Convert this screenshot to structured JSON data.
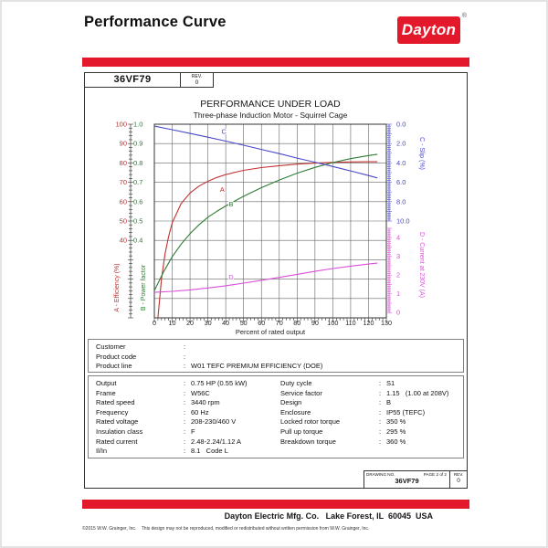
{
  "sep": ":",
  "colors": {
    "dayton_red": "#E3192B",
    "efficiency": "#C23030",
    "power_factor": "#2E7D33",
    "slip": "#4848C8",
    "current": "#D94FD9",
    "grid": "#666666",
    "plot_border": "#333333"
  },
  "header": {
    "title": "Performance Curve",
    "logo_text": "Dayton",
    "registered_mark": "®"
  },
  "part": {
    "number": "36VF79",
    "rev_label": "REV.",
    "rev_value": "0"
  },
  "chart_data": {
    "type": "line",
    "title": "PERFORMANCE UNDER LOAD",
    "subtitle": "Three-phase Induction Motor - Squirrel Cage",
    "xlabel": "Percent of rated output",
    "grid": true,
    "x_axis": {
      "min": 0,
      "max": 130,
      "ticks": [
        0,
        10,
        20,
        30,
        40,
        50,
        60,
        70,
        80,
        90,
        100,
        110,
        120,
        130
      ]
    },
    "y_axes": {
      "efficiency": {
        "title": "A - Efficiency (%)",
        "side": "left",
        "range": [
          0,
          100
        ],
        "ticks": [
          100,
          90,
          80,
          70,
          60,
          50,
          40
        ],
        "tick_labels": [
          "100",
          "90",
          "80",
          "70",
          "60",
          "50",
          "40"
        ]
      },
      "power_factor": {
        "title": "B - Power factor",
        "side": "left",
        "range": [
          0,
          1
        ],
        "ticks": [
          1.0,
          0.9,
          0.8,
          0.7,
          0.6,
          0.5,
          0.4
        ],
        "tick_labels": [
          "1.0",
          "0.9",
          "0.8",
          "0.7",
          "0.6",
          "0.5",
          "0.4"
        ]
      },
      "slip": {
        "title": "C - Slip (%)",
        "side": "right",
        "range": [
          0,
          10
        ],
        "ticks": [
          0,
          2,
          4,
          6,
          8,
          10
        ],
        "tick_labels": [
          "0.0",
          "2.0",
          "4.0",
          "6.0",
          "8.0",
          "10.0"
        ]
      },
      "current": {
        "title": "D - Current at 230V (A)",
        "side": "right",
        "range": [
          0,
          4
        ],
        "ticks": [
          4,
          3,
          2,
          1,
          0
        ],
        "tick_labels": [
          "4",
          "3",
          "2",
          "1",
          "0"
        ]
      }
    },
    "series": [
      {
        "name": "A",
        "axis": "efficiency",
        "points": [
          [
            2,
            0
          ],
          [
            4,
            20
          ],
          [
            6,
            33
          ],
          [
            8,
            42
          ],
          [
            10,
            49
          ],
          [
            15,
            59
          ],
          [
            20,
            64.5
          ],
          [
            25,
            68
          ],
          [
            30,
            70.5
          ],
          [
            35,
            72.5
          ],
          [
            40,
            74
          ],
          [
            50,
            76.2
          ],
          [
            60,
            77.6
          ],
          [
            70,
            78.6
          ],
          [
            80,
            79.4
          ],
          [
            90,
            79.9
          ],
          [
            100,
            80.3
          ],
          [
            110,
            80.5
          ],
          [
            120,
            80.6
          ],
          [
            125,
            80.6
          ]
        ]
      },
      {
        "name": "B",
        "axis": "power_factor",
        "points": [
          [
            0,
            0.14
          ],
          [
            5,
            0.235
          ],
          [
            10,
            0.315
          ],
          [
            15,
            0.38
          ],
          [
            20,
            0.435
          ],
          [
            25,
            0.48
          ],
          [
            30,
            0.52
          ],
          [
            35,
            0.55
          ],
          [
            40,
            0.578
          ],
          [
            50,
            0.628
          ],
          [
            60,
            0.672
          ],
          [
            70,
            0.712
          ],
          [
            80,
            0.747
          ],
          [
            90,
            0.777
          ],
          [
            100,
            0.802
          ],
          [
            110,
            0.822
          ],
          [
            120,
            0.838
          ],
          [
            125,
            0.845
          ]
        ]
      },
      {
        "name": "C",
        "axis": "slip",
        "points": [
          [
            0,
            0.2
          ],
          [
            10,
            0.57
          ],
          [
            20,
            0.95
          ],
          [
            30,
            1.34
          ],
          [
            40,
            1.75
          ],
          [
            50,
            2.17
          ],
          [
            60,
            2.6
          ],
          [
            70,
            3.04
          ],
          [
            80,
            3.5
          ],
          [
            90,
            3.92
          ],
          [
            100,
            4.37
          ],
          [
            110,
            4.82
          ],
          [
            120,
            5.3
          ],
          [
            125,
            5.55
          ]
        ]
      },
      {
        "name": "D",
        "axis": "current",
        "points": [
          [
            0,
            1.07
          ],
          [
            10,
            1.12
          ],
          [
            20,
            1.2
          ],
          [
            30,
            1.3
          ],
          [
            40,
            1.42
          ],
          [
            50,
            1.56
          ],
          [
            60,
            1.71
          ],
          [
            70,
            1.87
          ],
          [
            80,
            2.03
          ],
          [
            90,
            2.19
          ],
          [
            100,
            2.34
          ],
          [
            110,
            2.47
          ],
          [
            120,
            2.58
          ],
          [
            125,
            2.63
          ]
        ]
      }
    ],
    "curve_labels": [
      {
        "text": "C",
        "x": 39,
        "axis": "slip",
        "value": 1.0
      },
      {
        "text": "A",
        "x": 38,
        "axis": "efficiency",
        "value": 65
      },
      {
        "text": "B",
        "x": 43,
        "axis": "power_factor",
        "value": 0.575
      },
      {
        "text": "D",
        "x": 43,
        "axis": "current",
        "value": 1.75
      }
    ]
  },
  "customer_info": [
    {
      "label": "Customer",
      "value": ""
    },
    {
      "label": "Product code",
      "value": ""
    },
    {
      "label": "Product line",
      "value": "W01 TEFC PREMIUM EFFICIENCY (DOE)"
    }
  ],
  "specs": {
    "left": [
      {
        "label": "Output",
        "value": "0.75 HP (0.55 kW)"
      },
      {
        "label": "Frame",
        "value": "W56C"
      },
      {
        "label": "Rated speed",
        "value": "3440 rpm"
      },
      {
        "label": "Frequency",
        "value": "60 Hz"
      },
      {
        "label": "Rated voltage",
        "value": "208-230/460 V"
      },
      {
        "label": "Insulation class",
        "value": "F"
      },
      {
        "label": "Rated current",
        "value": "2.48-2.24/1.12 A"
      },
      {
        "label": "Il/In",
        "value": "8.1   Code L"
      }
    ],
    "right": [
      {
        "label": "Duty cycle",
        "value": "S1"
      },
      {
        "label": "Service factor",
        "value": "1.15   (1.00 at 208V)"
      },
      {
        "label": "Design",
        "value": "B"
      },
      {
        "label": "Enclosure",
        "value": "IP55 (TEFC)"
      },
      {
        "label": "Locked rotor torque",
        "value": "350 %"
      },
      {
        "label": "Pull up torque",
        "value": "295 %"
      },
      {
        "label": "Breakdown torque",
        "value": "360 %"
      }
    ]
  },
  "title_block": {
    "drawing_no_label": "DRAWING NO.",
    "page_label": "PAGE 2 of 2",
    "rev_label": "REV.",
    "drawing_no_value": "36VF79",
    "rev_value": "0"
  },
  "footer": {
    "company_line": "Dayton Electric Mfg. Co.   Lake Forest, IL  60045  USA",
    "copyright": "©2015 W.W. Grainger, Inc.    This design may not be reproduced, modified or redistributed without written permission from W.W. Grainger, Inc."
  }
}
